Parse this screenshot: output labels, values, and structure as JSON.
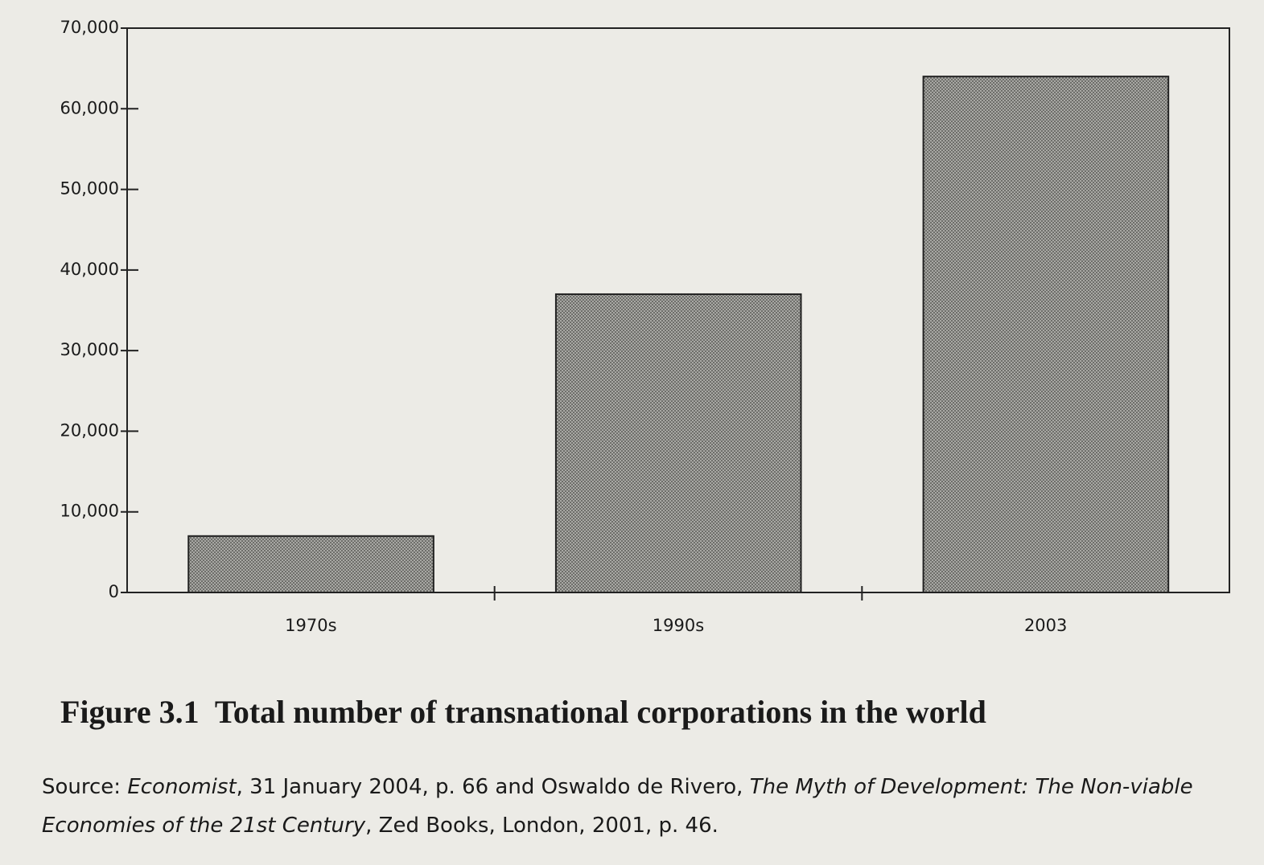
{
  "chart_data": {
    "type": "bar",
    "title": "Figure 3.1  Total number of transnational corporations in the world",
    "source": [
      "Source: ",
      "Economist",
      ", 31 January 2004, p. 66 and Oswaldo de Rivero, ",
      "The Myth of Development: The Non-viable Economies of the 21st Century",
      ", Zed Books, London, 2001, p. 46."
    ],
    "categories": [
      "1970s",
      "1990s",
      "2003"
    ],
    "values": [
      7000,
      37000,
      64000
    ],
    "color": "#8a8a86",
    "ylim": [
      0,
      70000
    ],
    "yticks": [
      0,
      {
        "value": 10000,
        "label": "10,000"
      },
      {
        "value": 20000,
        "label": "20,000"
      },
      {
        "value": 30000,
        "label": "30,000"
      },
      {
        "value": 40000,
        "label": "40,000"
      },
      {
        "value": 50000,
        "label": "50,000"
      },
      {
        "value": 60000,
        "label": "60,000"
      },
      {
        "value": 70000,
        "label": "70,000"
      }
    ],
    "grid": false
  }
}
